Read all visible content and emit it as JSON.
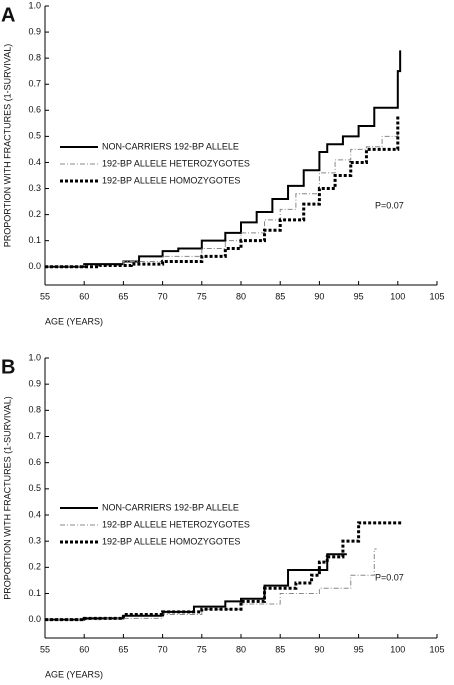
{
  "chart_data": [
    {
      "type": "line",
      "step": true,
      "panel_label": "A",
      "y_label": "PROPORTION WITH FRACTURES (1-SURVIVAL)",
      "x_label": "AGE (YEARS)",
      "annotation": "P=0.07",
      "xlim": [
        55,
        105
      ],
      "xticks": [
        55,
        60,
        65,
        70,
        75,
        80,
        85,
        90,
        95,
        100,
        105
      ],
      "ylim": [
        -0.07,
        1.0
      ],
      "yticks": [
        {
          "value": 0,
          "label": "0.0"
        },
        {
          "value": 0.1,
          "label": "0.1"
        },
        {
          "value": 0.2,
          "label": "0.2"
        },
        {
          "value": 0.3,
          "label": "0.3"
        },
        {
          "value": 0.4,
          "label": "0.4"
        },
        {
          "value": 0.5,
          "label": "0.5"
        },
        {
          "value": 0.6,
          "label": "0.6"
        },
        {
          "value": 0.7,
          "label": "0.7"
        },
        {
          "value": 0.8,
          "label": "0.8"
        },
        {
          "value": 0.9,
          "label": "0.9"
        },
        {
          "value": 1.0,
          "label": "1.0"
        }
      ],
      "series": [
        {
          "name": "NON-CARRIERS 192-BP ALLELE",
          "color": "#000000",
          "dash": "solid",
          "x": [
            55,
            60,
            65,
            67,
            70,
            72,
            75,
            78,
            80,
            82,
            84,
            86,
            88,
            90,
            91,
            93,
            95,
            97,
            100,
            100.3
          ],
          "values": [
            0,
            0.01,
            0.02,
            0.04,
            0.06,
            0.07,
            0.1,
            0.13,
            0.17,
            0.21,
            0.26,
            0.31,
            0.37,
            0.44,
            0.47,
            0.5,
            0.54,
            0.61,
            0.75,
            0.83
          ]
        },
        {
          "name": "192-BP ALLELE HETEROZYGOTES",
          "color": "#888888",
          "dash": "dashdot",
          "x": [
            55,
            60,
            65,
            70,
            75,
            78,
            80,
            83,
            85,
            87,
            90,
            92,
            94,
            96,
            98,
            100
          ],
          "values": [
            0,
            0.005,
            0.02,
            0.04,
            0.07,
            0.1,
            0.13,
            0.18,
            0.22,
            0.28,
            0.36,
            0.41,
            0.45,
            0.46,
            0.5,
            0.52
          ]
        },
        {
          "name": "192-BP ALLELE HOMOZYGOTES",
          "color": "#000000",
          "dash": "dotted",
          "x": [
            55,
            62,
            66,
            70,
            75,
            78,
            80,
            83,
            85,
            88,
            90,
            92,
            94,
            96,
            100
          ],
          "values": [
            0,
            0.005,
            0.01,
            0.02,
            0.04,
            0.07,
            0.1,
            0.14,
            0.18,
            0.24,
            0.3,
            0.35,
            0.4,
            0.45,
            0.58
          ]
        }
      ]
    },
    {
      "type": "line",
      "step": true,
      "panel_label": "B",
      "y_label": "PROPORTION WITH FRACTURES (1-SURVIVAL)",
      "x_label": "AGE (YEARS)",
      "annotation": "P=0.07",
      "xlim": [
        55,
        105
      ],
      "xticks": [
        55,
        60,
        65,
        70,
        75,
        80,
        85,
        90,
        95,
        100,
        105
      ],
      "ylim": [
        -0.07,
        1.0
      ],
      "yticks": [
        {
          "value": 0,
          "label": "0.0"
        },
        {
          "value": 0.1,
          "label": "0.1"
        },
        {
          "value": 0.2,
          "label": "0.2"
        },
        {
          "value": 0.3,
          "label": "0.3"
        },
        {
          "value": 0.4,
          "label": "0.4"
        },
        {
          "value": 0.5,
          "label": "0.5"
        },
        {
          "value": 0.6,
          "label": "0.6"
        },
        {
          "value": 0.7,
          "label": "0.7"
        },
        {
          "value": 0.8,
          "label": "0.8"
        },
        {
          "value": 0.9,
          "label": "0.9"
        },
        {
          "value": 1.0,
          "label": "1.0"
        }
      ],
      "series": [
        {
          "name": "NON-CARRIERS 192-BP ALLELE",
          "color": "#000000",
          "dash": "solid",
          "x": [
            55,
            60,
            65,
            70,
            74,
            78,
            80,
            83,
            86,
            90,
            91,
            93.5
          ],
          "values": [
            0,
            0.005,
            0.015,
            0.03,
            0.05,
            0.07,
            0.08,
            0.13,
            0.19,
            0.19,
            0.25,
            0.25
          ]
        },
        {
          "name": "192-BP ALLELE HETEROZYGOTES",
          "color": "#888888",
          "dash": "dashdot",
          "x": [
            55,
            62,
            70,
            75,
            80,
            85,
            90,
            94,
            97,
            97.3
          ],
          "values": [
            0,
            0.005,
            0.02,
            0.04,
            0.06,
            0.1,
            0.12,
            0.17,
            0.27,
            0.27
          ]
        },
        {
          "name": "192-BP ALLELE HOMOZYGOTES",
          "color": "#000000",
          "dash": "dotted",
          "x": [
            55,
            60,
            65,
            70,
            75,
            80,
            83,
            87,
            89,
            90,
            91,
            93,
            95,
            100.5
          ],
          "values": [
            0,
            0.005,
            0.02,
            0.03,
            0.04,
            0.07,
            0.12,
            0.14,
            0.17,
            0.22,
            0.24,
            0.3,
            0.37,
            0.37
          ]
        }
      ]
    }
  ]
}
